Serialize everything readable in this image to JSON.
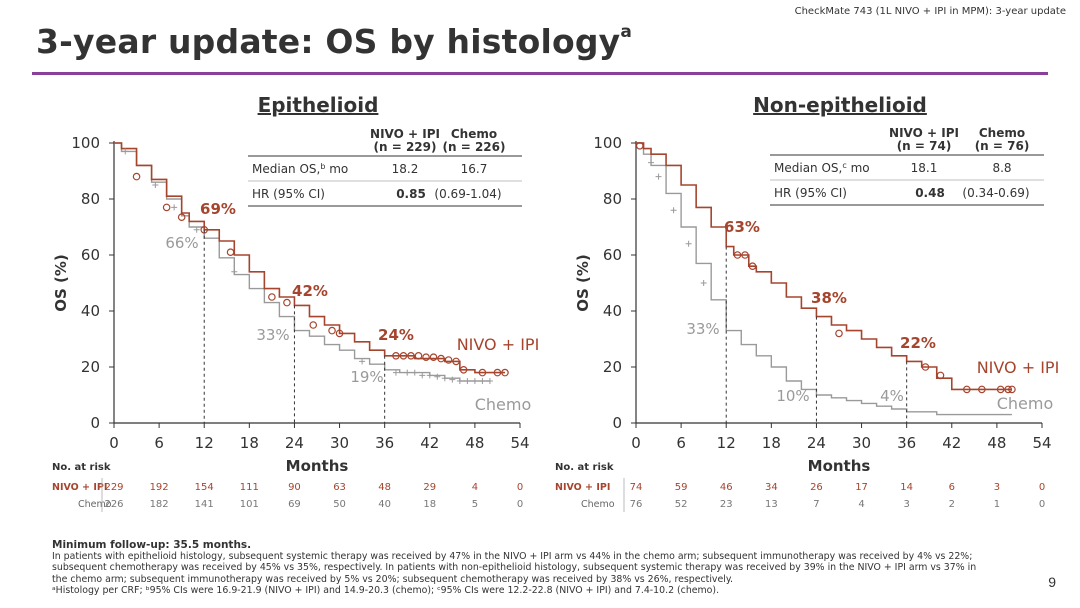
{
  "header": {
    "trial_tag": "CheckMate 743 (1L NIVO + IPI in MPM): 3-year update",
    "title": "3-year update: OS by histology",
    "title_sup": "a"
  },
  "colors": {
    "nivo": "#a6452e",
    "chemo": "#9a9a9a",
    "rule": "#8a3f9a",
    "text": "#333333"
  },
  "chart_data": [
    {
      "type": "line",
      "title": "Epithelioid",
      "xlabel": "Months",
      "ylabel": "OS (%)",
      "xlim": [
        0,
        54
      ],
      "ylim": [
        0,
        100
      ],
      "xticks": [
        0,
        6,
        12,
        18,
        24,
        30,
        36,
        42,
        48,
        54
      ],
      "yticks": [
        0,
        20,
        40,
        60,
        80,
        100
      ],
      "series": [
        {
          "name": "NIVO + IPI",
          "x": [
            0,
            1,
            3,
            5,
            7,
            9,
            10,
            12,
            14,
            16,
            18,
            20,
            22,
            24,
            26,
            28,
            30,
            32,
            34,
            36,
            38,
            40,
            42,
            44,
            46,
            48,
            50,
            52
          ],
          "y": [
            100,
            98,
            92,
            87,
            81,
            75,
            72,
            69,
            65,
            60,
            54,
            48,
            45,
            42,
            38,
            35,
            32,
            29,
            26,
            24,
            24,
            23,
            23,
            22,
            19,
            18,
            18,
            18
          ]
        },
        {
          "name": "Chemo",
          "x": [
            0,
            1,
            3,
            5,
            7,
            9,
            10,
            12,
            14,
            16,
            18,
            20,
            22,
            24,
            26,
            28,
            30,
            32,
            34,
            36,
            38,
            40,
            42,
            44,
            46,
            48,
            50
          ],
          "y": [
            100,
            97,
            92,
            86,
            80,
            74,
            70,
            66,
            59,
            53,
            48,
            43,
            38,
            33,
            31,
            28,
            26,
            23,
            21,
            19,
            18,
            18,
            17,
            16,
            15,
            15,
            15
          ]
        }
      ],
      "markers_nivo": [
        [
          3,
          88
        ],
        [
          7,
          77
        ],
        [
          9,
          73.5
        ],
        [
          12,
          69
        ],
        [
          15.5,
          61
        ],
        [
          21,
          45
        ],
        [
          23,
          43
        ],
        [
          26.5,
          35
        ],
        [
          29,
          33
        ],
        [
          30,
          32
        ],
        [
          37.5,
          24
        ],
        [
          38.5,
          24
        ],
        [
          39.5,
          24
        ],
        [
          40.5,
          24
        ],
        [
          41.5,
          23.5
        ],
        [
          42.5,
          23.5
        ],
        [
          43.5,
          23
        ],
        [
          44.5,
          22.5
        ],
        [
          45.5,
          22
        ],
        [
          46.5,
          19
        ],
        [
          49,
          18
        ],
        [
          51,
          18
        ],
        [
          52,
          18
        ]
      ],
      "markers_chemo": [
        [
          1.5,
          97
        ],
        [
          5.5,
          85
        ],
        [
          8,
          77
        ],
        [
          11,
          69
        ],
        [
          16,
          54
        ],
        [
          33,
          22
        ],
        [
          37.5,
          18
        ],
        [
          39,
          18
        ],
        [
          40,
          18
        ],
        [
          41,
          17
        ],
        [
          42,
          17
        ],
        [
          43,
          16.5
        ],
        [
          44,
          16
        ],
        [
          45,
          15.5
        ],
        [
          46,
          15
        ],
        [
          47,
          15
        ],
        [
          48,
          15
        ],
        [
          49,
          15
        ],
        [
          50,
          15
        ]
      ],
      "annotations": [
        {
          "x": 12,
          "nivo": "69%",
          "chemo": "66%"
        },
        {
          "x": 24,
          "nivo": "42%",
          "chemo": "33%"
        },
        {
          "x": 36,
          "nivo": "24%",
          "chemo": "19%"
        }
      ],
      "series_labels": {
        "nivo": "NIVO + IPI",
        "chemo": "Chemo"
      },
      "table": {
        "cols": [
          "NIVO + IPI\n(n = 229)",
          "Chemo\n(n = 226)"
        ],
        "rows": [
          {
            "label": "Median OS,",
            "sup": "b",
            "unit": " mo",
            "v1": "18.2",
            "v2": "16.7"
          },
          {
            "label": "HR (95% CI)",
            "sup": "",
            "unit": "",
            "hr": "0.85",
            "ci": "(0.69-1.04)"
          }
        ]
      },
      "at_risk": {
        "label": "No. at risk",
        "nivo": [
          "229",
          "192",
          "154",
          "111",
          "90",
          "63",
          "48",
          "29",
          "4",
          "0"
        ],
        "chemo": [
          "226",
          "182",
          "141",
          "101",
          "69",
          "50",
          "40",
          "18",
          "5",
          "0"
        ]
      }
    },
    {
      "type": "line",
      "title": "Non-epithelioid",
      "xlabel": "Months",
      "ylabel": "OS (%)",
      "xlim": [
        0,
        54
      ],
      "ylim": [
        0,
        100
      ],
      "xticks": [
        0,
        6,
        12,
        18,
        24,
        30,
        36,
        42,
        48,
        54
      ],
      "yticks": [
        0,
        20,
        40,
        60,
        80,
        100
      ],
      "series": [
        {
          "name": "NIVO + IPI",
          "x": [
            0,
            1,
            2,
            4,
            6,
            8,
            10,
            12,
            13,
            15,
            16,
            18,
            20,
            22,
            24,
            26,
            28,
            30,
            32,
            34,
            36,
            38,
            40,
            42,
            44,
            46,
            48,
            50
          ],
          "y": [
            100,
            98,
            96,
            92,
            85,
            77,
            70,
            63,
            60,
            56,
            54,
            50,
            45,
            41,
            38,
            35,
            33,
            30,
            27,
            24,
            22,
            20,
            16,
            12,
            12,
            12,
            12,
            12
          ]
        },
        {
          "name": "Chemo",
          "x": [
            0,
            1,
            2,
            4,
            6,
            8,
            10,
            12,
            14,
            16,
            18,
            20,
            22,
            24,
            26,
            28,
            30,
            32,
            34,
            36,
            40,
            44,
            48,
            50
          ],
          "y": [
            100,
            96,
            92,
            82,
            70,
            57,
            44,
            33,
            28,
            24,
            20,
            15,
            12,
            10,
            9,
            8,
            7,
            6,
            5,
            4,
            3,
            3,
            3,
            3
          ]
        }
      ],
      "markers_nivo": [
        [
          0.5,
          99
        ],
        [
          13.5,
          60
        ],
        [
          14.5,
          60
        ],
        [
          15.5,
          56
        ],
        [
          27,
          32
        ],
        [
          38.5,
          20
        ],
        [
          40.5,
          17
        ],
        [
          44,
          12
        ],
        [
          46,
          12
        ],
        [
          48.5,
          12
        ],
        [
          49.5,
          12
        ],
        [
          50,
          12
        ]
      ],
      "markers_chemo": [
        [
          2,
          93
        ],
        [
          3,
          88
        ],
        [
          5,
          76
        ],
        [
          7,
          64
        ],
        [
          9,
          50
        ]
      ],
      "annotations": [
        {
          "x": 12,
          "nivo": "63%",
          "chemo": "33%"
        },
        {
          "x": 24,
          "nivo": "38%",
          "chemo": "10%"
        },
        {
          "x": 36,
          "nivo": "22%",
          "chemo": "4%"
        }
      ],
      "series_labels": {
        "nivo": "NIVO + IPI",
        "chemo": "Chemo"
      },
      "table": {
        "cols": [
          "NIVO + IPI\n(n = 74)",
          "Chemo\n(n = 76)"
        ],
        "rows": [
          {
            "label": "Median OS,",
            "sup": "c",
            "unit": " mo",
            "v1": "18.1",
            "v2": "8.8"
          },
          {
            "label": "HR (95% CI)",
            "sup": "",
            "unit": "",
            "hr": "0.48",
            "ci": "(0.34-0.69)"
          }
        ]
      },
      "at_risk": {
        "label": "No. at risk",
        "nivo": [
          "74",
          "59",
          "46",
          "34",
          "26",
          "17",
          "14",
          "6",
          "3",
          "0"
        ],
        "chemo": [
          "76",
          "52",
          "23",
          "13",
          "7",
          "4",
          "3",
          "2",
          "1",
          "0"
        ]
      }
    }
  ],
  "footnotes": {
    "min_followup": "Minimum follow-up: 35.5 months.",
    "lines": [
      "In patients with epithelioid histology, subsequent systemic therapy was received by 47% in the NIVO + IPI arm vs 44% in the chemo arm; subsequent immunotherapy was received by 4% vs 22%;",
      "subsequent chemotherapy was received by 45% vs 35%, respectively. In patients with non-epithelioid histology, subsequent systemic therapy was received by 39% in the NIVO + IPI arm vs 37% in",
      "the chemo arm; subsequent immunotherapy was received by 5% vs 20%; subsequent chemotherapy was received by 38% vs 26%, respectively.",
      "ᵃHistology per CRF; ᵇ95% CIs were 16.9-21.9 (NIVO + IPI) and 14.9-20.3 (chemo); ᶜ95% CIs were 12.2-22.8 (NIVO + IPI) and 7.4-10.2 (chemo)."
    ]
  },
  "page_number": "9"
}
